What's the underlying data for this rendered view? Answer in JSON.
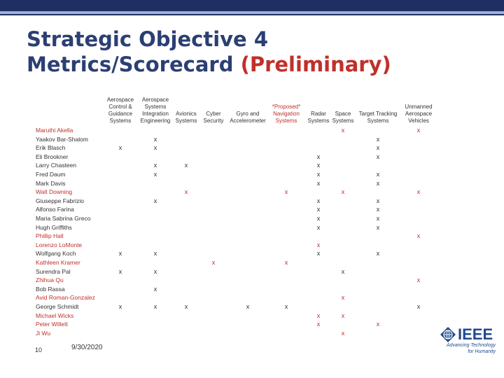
{
  "title": {
    "line1": "Strategic Objective 4",
    "line2": "Metrics/Scorecard",
    "prelim": "(Preliminary)"
  },
  "columns": [
    {
      "key": "acgs",
      "label": "Aerospace\nControl &\nGuidance\nSystems",
      "red": false
    },
    {
      "key": "asie",
      "label": "Aerospace\nSystems\nIntegration\nEngineering",
      "red": false
    },
    {
      "key": "av",
      "label": "Avionics\nSystems",
      "red": false
    },
    {
      "key": "cs",
      "label": "Cyber\nSecurity",
      "red": false
    },
    {
      "key": "ga",
      "label": "Gyro and\nAccelerometer",
      "red": false
    },
    {
      "key": "nav",
      "label": "*Proposed*\nNavigation\nSystems",
      "red": true
    },
    {
      "key": "radar",
      "label": "Radar\nSystems",
      "red": false
    },
    {
      "key": "space",
      "label": "Space\nSystems",
      "red": false
    },
    {
      "key": "tt",
      "label": "Target Tracking\nSystems",
      "red": false
    },
    {
      "key": "uav",
      "label": "Unmanned\nAerospace\nVehicles",
      "red": false
    }
  ],
  "mark": "x",
  "rows": [
    {
      "name": "Maruthi Akella",
      "red": true,
      "marks": [
        "space",
        "uav"
      ]
    },
    {
      "name": "Yaakov Bar-Shalom",
      "red": false,
      "marks": [
        "asie",
        "tt"
      ]
    },
    {
      "name": "Erik Blasch",
      "red": false,
      "marks": [
        "acgs",
        "asie",
        "tt"
      ]
    },
    {
      "name": "Eli Brookner",
      "red": false,
      "marks": [
        "radar",
        "tt"
      ]
    },
    {
      "name": "Larry Chasteen",
      "red": false,
      "marks": [
        "asie",
        "av",
        "radar"
      ]
    },
    {
      "name": "Fred Daum",
      "red": false,
      "marks": [
        "asie",
        "radar",
        "tt"
      ]
    },
    {
      "name": "Mark Davis",
      "red": false,
      "marks": [
        "radar",
        "tt"
      ]
    },
    {
      "name": "Walt Downing",
      "red": true,
      "marks": [
        "av",
        "nav",
        "space",
        "uav"
      ]
    },
    {
      "name": "Giuseppe Fabrizio",
      "red": false,
      "marks": [
        "asie",
        "radar",
        "tt"
      ]
    },
    {
      "name": "Alfonso Farina",
      "red": false,
      "marks": [
        "radar",
        "tt"
      ]
    },
    {
      "name": "Maria Sabrina Greco",
      "red": false,
      "marks": [
        "radar",
        "tt"
      ]
    },
    {
      "name": "Hugh Griffiths",
      "red": false,
      "marks": [
        "radar",
        "tt"
      ]
    },
    {
      "name": "Phillip Hall",
      "red": true,
      "marks": [
        "uav"
      ]
    },
    {
      "name": "Lorenzo LoMonte",
      "red": true,
      "marks": [
        "radar"
      ]
    },
    {
      "name": "Wolfgang Koch",
      "red": false,
      "marks": [
        "acgs",
        "asie",
        "radar",
        "tt"
      ]
    },
    {
      "name": "Kathleen Kramer",
      "red": true,
      "marks": [
        "cs",
        "nav"
      ]
    },
    {
      "name": "Surendra Pal",
      "red": false,
      "marks": [
        "acgs",
        "asie",
        "space"
      ]
    },
    {
      "name": "Zhihua Qu",
      "red": true,
      "marks": [
        "uav"
      ]
    },
    {
      "name": "Bob Rassa",
      "red": false,
      "marks": [
        "asie"
      ]
    },
    {
      "name": "Avid Roman-Gonzalez",
      "red": true,
      "marks": [
        "space"
      ]
    },
    {
      "name": "George Schmidt",
      "red": false,
      "marks": [
        "acgs",
        "asie",
        "av",
        "ga",
        "nav",
        "uav"
      ]
    },
    {
      "name": "Michael Wicks",
      "red": true,
      "marks": [
        "radar",
        "space"
      ]
    },
    {
      "name": "Peter Willett",
      "red": true,
      "marks": [
        "radar",
        "tt"
      ]
    },
    {
      "name": "Ji Wu",
      "red": true,
      "marks": [
        "space"
      ]
    }
  ],
  "footer": {
    "slide_number": "10",
    "date": "9/30/2020"
  },
  "logo": {
    "word": "IEEE",
    "tagline": "Advancing Technology\nfor Humanity"
  }
}
